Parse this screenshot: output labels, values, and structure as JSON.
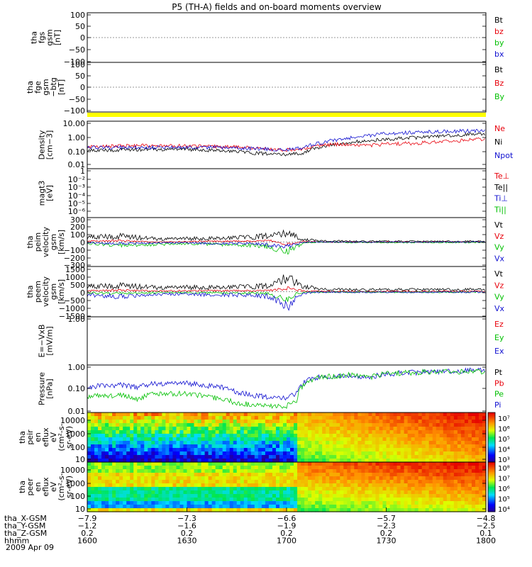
{
  "title": "P5 (TH-A) fields and on-board moments overview",
  "date_label": "2009 Apr 09",
  "colors": {
    "black": "#000000",
    "red": "#e8000b",
    "green": "#00c000",
    "blue": "#1010d0",
    "yellow": "#ffff00"
  },
  "chart_data": [
    {
      "type": "line",
      "id": "fgs",
      "ylabel": [
        "tha",
        "fgs",
        "gsm",
        "[nT]"
      ],
      "yticks": [
        "100",
        "50",
        "0",
        "−50",
        "−100"
      ],
      "ylim": [
        -100,
        100
      ],
      "scale": "linear",
      "legend": [
        {
          "name": "Bt",
          "color": "black"
        },
        {
          "name": "bz",
          "color": "red"
        },
        {
          "name": "by",
          "color": "green"
        },
        {
          "name": "bx",
          "color": "blue"
        }
      ],
      "series": []
    },
    {
      "type": "line",
      "id": "fge",
      "ylabel": [
        "tha",
        "fge",
        "gsm",
        "−btg",
        "[nT]"
      ],
      "yticks": [
        "100",
        "50",
        "0",
        "−50",
        "−100"
      ],
      "ylim": [
        -120,
        120
      ],
      "scale": "linear",
      "legend": [
        {
          "name": "Bt",
          "color": "black"
        },
        {
          "name": "Bz",
          "color": "red"
        },
        {
          "name": "By",
          "color": "green"
        }
      ],
      "series": []
    },
    {
      "type": "bar",
      "id": "flag",
      "color": "yellow"
    },
    {
      "type": "line",
      "id": "density",
      "ylabel": [
        "Density",
        "[cm−3]"
      ],
      "yticks": [
        "10.00",
        "1.00",
        "0.10",
        "0.01"
      ],
      "ylim": [
        0.01,
        20
      ],
      "scale": "log",
      "legend": [
        {
          "name": "Ne",
          "color": "red"
        },
        {
          "name": "Ni",
          "color": "black"
        },
        {
          "name": "Npot",
          "color": "blue"
        }
      ],
      "series": [
        {
          "name": "Ni",
          "color": "black",
          "x": [
            1600,
            1610,
            1620,
            1630,
            1640,
            1650,
            1655,
            1700,
            1705,
            1710,
            1715,
            1720,
            1725,
            1730,
            1740,
            1750,
            1800
          ],
          "y": [
            0.18,
            0.2,
            0.22,
            0.22,
            0.18,
            0.12,
            0.11,
            0.1,
            0.12,
            0.3,
            0.5,
            0.7,
            0.9,
            1.1,
            1.5,
            2.0,
            2.6
          ]
        },
        {
          "name": "Ne",
          "color": "red",
          "x": [
            1600,
            1610,
            1620,
            1630,
            1640,
            1650,
            1655,
            1700,
            1705,
            1710,
            1715,
            1720,
            1725,
            1730,
            1740,
            1750,
            1800
          ],
          "y": [
            0.32,
            0.38,
            0.4,
            0.38,
            0.35,
            0.28,
            0.22,
            0.2,
            0.25,
            0.4,
            0.5,
            0.45,
            0.42,
            0.5,
            0.6,
            0.8,
            1.2
          ]
        },
        {
          "name": "Npot",
          "color": "blue",
          "x": [
            1600,
            1610,
            1620,
            1630,
            1640,
            1650,
            1655,
            1700,
            1705,
            1710,
            1715,
            1720,
            1725,
            1730,
            1740,
            1750,
            1800
          ],
          "y": [
            0.3,
            0.3,
            0.3,
            0.3,
            0.3,
            0.25,
            0.22,
            0.2,
            0.3,
            0.6,
            1.0,
            1.5,
            2.0,
            2.8,
            3.5,
            4.0,
            4.3
          ]
        }
      ]
    },
    {
      "type": "line",
      "id": "magt3",
      "ylabel": [
        "magt3",
        "[eV]"
      ],
      "yticks": [
        "1",
        "10⁻²",
        "10⁻³",
        "10⁻⁴",
        "10⁻⁵",
        "10⁻⁶"
      ],
      "scale": "log",
      "legend": [
        {
          "name": "Te⊥",
          "color": "red"
        },
        {
          "name": "Te||",
          "color": "black"
        },
        {
          "name": "Ti⊥",
          "color": "blue"
        },
        {
          "name": "Ti||",
          "color": "green"
        }
      ],
      "series": []
    },
    {
      "type": "line",
      "id": "peim",
      "ylabel": [
        "tha",
        "peim",
        "velocity",
        "gsm",
        "[km/s]"
      ],
      "yticks": [
        "300",
        "200",
        "100",
        "0",
        "−100",
        "−200",
        "−300"
      ],
      "ylim": [
        -300,
        300
      ],
      "scale": "linear",
      "legend": [
        {
          "name": "Vt",
          "color": "black"
        },
        {
          "name": "Vz",
          "color": "red"
        },
        {
          "name": "Vy",
          "color": "green"
        },
        {
          "name": "Vx",
          "color": "blue"
        }
      ],
      "series": [
        {
          "name": "Vt",
          "color": "black",
          "x": [
            1600,
            1610,
            1620,
            1630,
            1640,
            1650,
            1655,
            1700,
            1705,
            1710,
            1720,
            1730,
            1740,
            1800
          ],
          "y": [
            60,
            70,
            40,
            40,
            45,
            60,
            80,
            120,
            30,
            15,
            10,
            10,
            8,
            8
          ]
        },
        {
          "name": "Vz",
          "color": "red",
          "x": [
            1600,
            1610,
            1620,
            1630,
            1640,
            1650,
            1655,
            1700,
            1705,
            1710,
            1720,
            1730,
            1740,
            1800
          ],
          "y": [
            10,
            15,
            0,
            5,
            10,
            10,
            20,
            -30,
            10,
            0,
            0,
            0,
            0,
            0
          ]
        },
        {
          "name": "Vy",
          "color": "green",
          "x": [
            1600,
            1610,
            1620,
            1630,
            1640,
            1650,
            1655,
            1700,
            1705,
            1710,
            1720,
            1730,
            1740,
            1800
          ],
          "y": [
            -20,
            -40,
            -30,
            -20,
            -30,
            -40,
            -60,
            -120,
            -10,
            0,
            -5,
            -5,
            -5,
            -5
          ]
        },
        {
          "name": "Vx",
          "color": "blue",
          "x": [
            1600,
            1610,
            1620,
            1630,
            1640,
            1650,
            1655,
            1700,
            1705,
            1710,
            1720,
            1730,
            1740,
            1800
          ],
          "y": [
            -10,
            -20,
            -10,
            -10,
            -20,
            -15,
            -40,
            -60,
            -5,
            0,
            0,
            0,
            0,
            0
          ]
        }
      ]
    },
    {
      "type": "line",
      "id": "peem",
      "ylabel": [
        "tha",
        "peem",
        "velocity",
        "gsm",
        "[km/s]"
      ],
      "yticks": [
        "1500",
        "1000",
        "500",
        "0",
        "−500",
        "−1000",
        "−1500"
      ],
      "ylim": [
        -1500,
        1500
      ],
      "scale": "linear",
      "legend": [
        {
          "name": "Vt",
          "color": "black"
        },
        {
          "name": "Vz",
          "color": "red"
        },
        {
          "name": "Vy",
          "color": "green"
        },
        {
          "name": "Vx",
          "color": "blue"
        }
      ],
      "series": [
        {
          "name": "Vt",
          "color": "black",
          "x": [
            1600,
            1610,
            1620,
            1630,
            1640,
            1650,
            1655,
            1700,
            1703,
            1705,
            1710,
            1720,
            1730,
            1740,
            1800
          ],
          "y": [
            300,
            350,
            250,
            250,
            250,
            300,
            350,
            900,
            500,
            300,
            150,
            120,
            120,
            120,
            120
          ]
        },
        {
          "name": "Vz",
          "color": "red",
          "x": [
            1600,
            1610,
            1620,
            1630,
            1640,
            1650,
            1655,
            1700,
            1703,
            1705,
            1710,
            1720,
            1730,
            1740,
            1800
          ],
          "y": [
            50,
            80,
            40,
            50,
            60,
            50,
            80,
            200,
            100,
            50,
            20,
            20,
            20,
            20,
            20
          ]
        },
        {
          "name": "Vy",
          "color": "green",
          "x": [
            1600,
            1610,
            1620,
            1630,
            1640,
            1650,
            1655,
            1700,
            1703,
            1705,
            1710,
            1720,
            1730,
            1740,
            1800
          ],
          "y": [
            -80,
            -100,
            -60,
            -60,
            -80,
            -90,
            -120,
            -500,
            -100,
            -40,
            -30,
            -30,
            -30,
            -30,
            -30
          ]
        },
        {
          "name": "Vx",
          "color": "blue",
          "x": [
            1600,
            1610,
            1620,
            1630,
            1640,
            1650,
            1655,
            1700,
            1703,
            1705,
            1710,
            1720,
            1730,
            1740,
            1800
          ],
          "y": [
            -200,
            -300,
            -150,
            -150,
            -200,
            -200,
            -300,
            -900,
            -300,
            -100,
            -30,
            -30,
            -30,
            -30,
            -30
          ]
        }
      ]
    },
    {
      "type": "line",
      "id": "efield",
      "ylabel": [
        "E=−VxB",
        "[mV/m]"
      ],
      "yticks": [
        "1.00"
      ],
      "legend": [
        {
          "name": "Ez",
          "color": "red"
        },
        {
          "name": "Ey",
          "color": "green"
        },
        {
          "name": "Ex",
          "color": "blue"
        }
      ],
      "series": []
    },
    {
      "type": "line",
      "id": "pressure",
      "ylabel": [
        "Pressure",
        "[nPa]"
      ],
      "yticks": [
        "1.00",
        "0.10",
        "0.01"
      ],
      "ylim": [
        0.008,
        1.3
      ],
      "scale": "log",
      "legend": [
        {
          "name": "Pt",
          "color": "black"
        },
        {
          "name": "Pb",
          "color": "red"
        },
        {
          "name": "Pe",
          "color": "green"
        },
        {
          "name": "Pi",
          "color": "blue"
        }
      ],
      "series": [
        {
          "name": "Pi",
          "color": "blue",
          "x": [
            1600,
            1605,
            1610,
            1615,
            1620,
            1630,
            1640,
            1645,
            1650,
            1655,
            1700,
            1703,
            1705,
            1707,
            1710,
            1720,
            1725,
            1730,
            1740,
            1750,
            1800
          ],
          "y": [
            0.12,
            0.15,
            0.15,
            0.12,
            0.18,
            0.18,
            0.12,
            0.07,
            0.05,
            0.04,
            0.04,
            0.06,
            0.18,
            0.28,
            0.35,
            0.4,
            0.35,
            0.5,
            0.6,
            0.65,
            0.75
          ]
        },
        {
          "name": "Pe",
          "color": "green",
          "x": [
            1600,
            1605,
            1610,
            1615,
            1620,
            1630,
            1640,
            1645,
            1650,
            1655,
            1700,
            1703,
            1705,
            1707,
            1710,
            1720,
            1725,
            1730,
            1740,
            1750,
            1800
          ],
          "y": [
            0.04,
            0.05,
            0.05,
            0.035,
            0.06,
            0.06,
            0.035,
            0.022,
            0.018,
            0.016,
            0.016,
            0.025,
            0.15,
            0.25,
            0.35,
            0.45,
            0.35,
            0.5,
            0.6,
            0.62,
            0.65
          ]
        }
      ]
    },
    {
      "type": "heatmap",
      "id": "peir",
      "ylabel": [
        "tha",
        "peir",
        "en",
        "eflux",
        "eV",
        "(cm²-s-",
        "sr-eV)"
      ],
      "yticks": [
        "10000",
        "1000",
        "100",
        "10"
      ],
      "colorbar_ticks": [
        "10⁷",
        "10⁶",
        "10⁵",
        "10⁴",
        "10³"
      ]
    },
    {
      "type": "heatmap",
      "id": "peer",
      "ylabel": [
        "tha",
        "peer",
        "en",
        "eflux",
        "eV",
        "(cm²-s-",
        "sr-eV)"
      ],
      "yticks": [
        "10000",
        "1000",
        "100",
        "10"
      ],
      "colorbar_ticks": [
        "10⁸",
        "10⁷",
        "10⁶",
        "10⁵",
        "10⁴"
      ]
    }
  ],
  "x_axis": {
    "ticks": [
      "1600",
      "1630",
      "1700",
      "1730",
      "1800"
    ],
    "rows": [
      {
        "label": "tha_X-GSM",
        "values": [
          "−7.9",
          "−7.3",
          "−6.6",
          "−5.7",
          "−4.8"
        ]
      },
      {
        "label": "tha_Y-GSM",
        "values": [
          "−1.2",
          "−1.6",
          "−1.9",
          "−2.3",
          "−2.5"
        ]
      },
      {
        "label": "tha_Z-GSM",
        "values": [
          "0.2",
          "0.2",
          "0.2",
          "0.2",
          "0.1"
        ]
      },
      {
        "label": "hhmm",
        "values": [
          "1600",
          "1630",
          "1700",
          "1730",
          "1800"
        ]
      }
    ]
  }
}
